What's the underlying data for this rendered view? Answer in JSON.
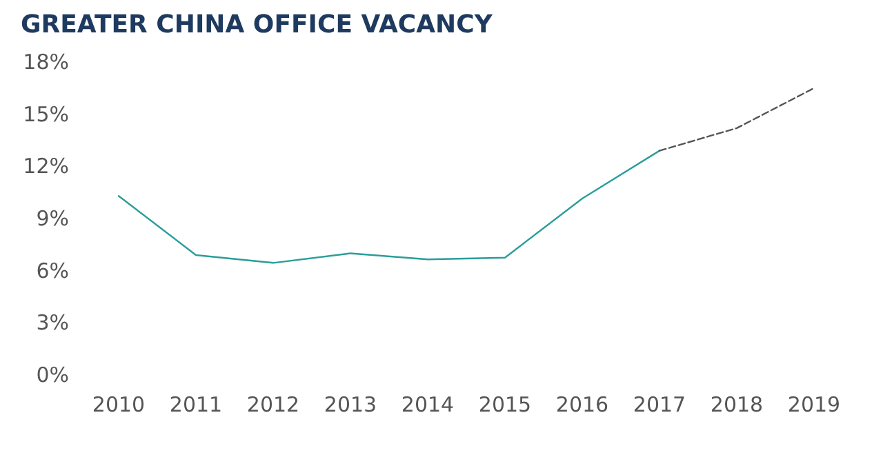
{
  "chart_data": {
    "type": "line",
    "title": "GREATER CHINA OFFICE VACANCY",
    "categories": [
      "2010",
      "2011",
      "2012",
      "2013",
      "2014",
      "2015",
      "2016",
      "2017",
      "2018",
      "2019"
    ],
    "series": [
      {
        "color": "#2a9d9a",
        "line_style": "solid",
        "values": [
          10.3,
          6.9,
          6.45,
          7.0,
          6.65,
          6.75,
          10.15,
          12.9,
          null,
          null
        ]
      },
      {
        "color": "#555555",
        "line_style": "dashed",
        "values": [
          null,
          null,
          null,
          null,
          null,
          null,
          null,
          12.9,
          14.2,
          16.5
        ]
      }
    ],
    "ylim": [
      0,
      18
    ],
    "yticks": [
      {
        "value": 0,
        "label": "0%"
      },
      {
        "value": 3,
        "label": "3%"
      },
      {
        "value": 6,
        "label": "6%"
      },
      {
        "value": 9,
        "label": "9%"
      },
      {
        "value": 12,
        "label": "12%"
      },
      {
        "value": 15,
        "label": "15%"
      },
      {
        "value": 18,
        "label": "18%"
      }
    ],
    "grid": false,
    "marker": "none"
  }
}
